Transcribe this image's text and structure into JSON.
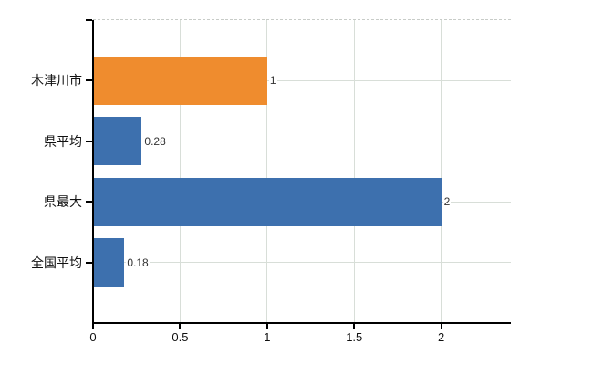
{
  "chart_data": {
    "type": "bar",
    "orientation": "horizontal",
    "title": "",
    "xlabel": "",
    "ylabel": "",
    "categories": [
      "木津川市",
      "県平均",
      "県最大",
      "全国平均"
    ],
    "values": [
      1,
      0.28,
      2,
      0.18
    ],
    "value_labels": [
      "1",
      "0.28",
      "2",
      "0.18"
    ],
    "bar_colors": [
      "#ef8c2e",
      "#3d70ae",
      "#3d70ae",
      "#3d70ae"
    ],
    "xlim": [
      0,
      2.4
    ],
    "xticks": [
      0,
      0.5,
      1,
      1.5,
      2
    ],
    "xtick_labels": [
      "0",
      "0.5",
      "1",
      "1.5",
      "2"
    ],
    "grid": true,
    "legend": false
  },
  "colors": {
    "accent_orange": "#ef8c2e",
    "accent_blue": "#3d70ae",
    "axis": "#000000",
    "gridline": "#d8ded8",
    "top_border": "#c8ccc8",
    "label_text": "#111111",
    "value_text": "#333333",
    "background": "#ffffff"
  }
}
